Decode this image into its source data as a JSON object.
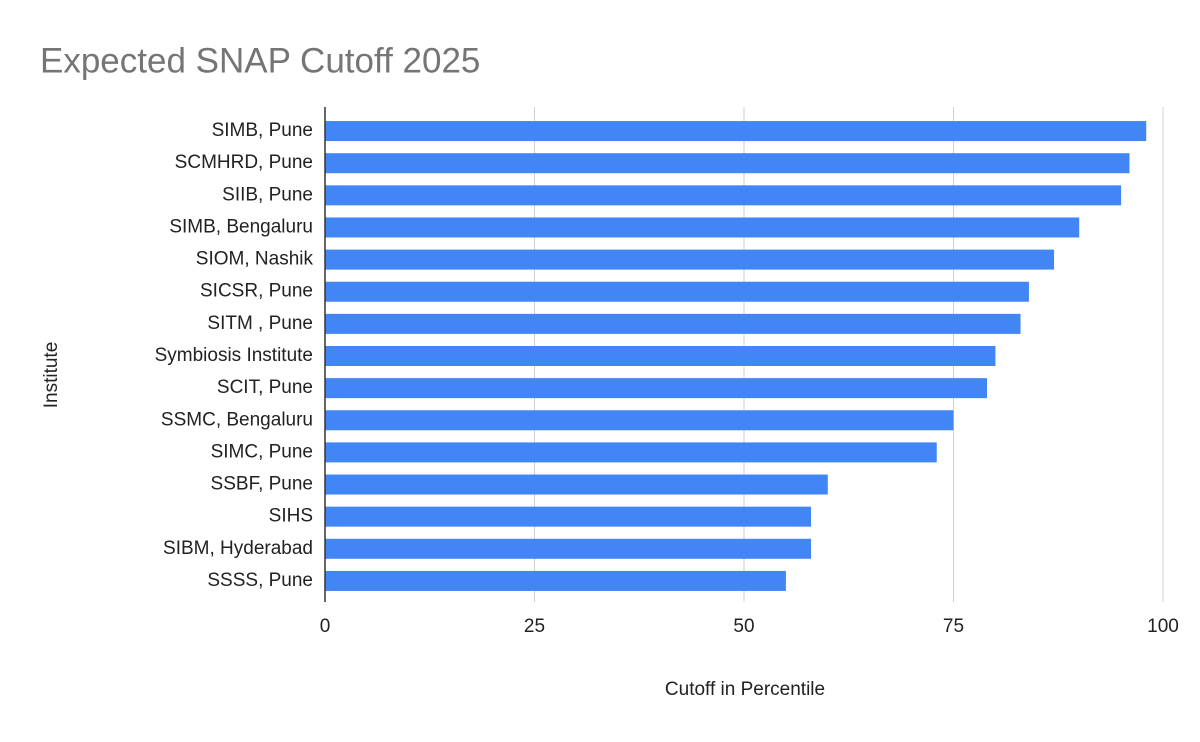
{
  "chart_data": {
    "type": "bar",
    "orientation": "horizontal",
    "title": "Expected SNAP Cutoff 2025",
    "x_label": "Cutoff in Percentile",
    "y_label": "Institute",
    "categories": [
      "SIMB, Pune",
      "SCMHRD, Pune",
      "SIIB, Pune",
      "SIMB, Bengaluru",
      "SIOM, Nashik",
      "SICSR, Pune",
      "SITM , Pune",
      "Symbiosis Institute",
      "SCIT, Pune",
      "SSMC, Bengaluru",
      "SIMC, Pune",
      "SSBF, Pune",
      "SIHS",
      "SIBM, Hyderabad",
      "SSSS, Pune"
    ],
    "values": [
      98,
      96,
      95,
      90,
      87,
      84,
      83,
      80,
      79,
      75,
      73,
      60,
      58,
      58,
      55
    ],
    "color": "#4285f4",
    "xlim": [
      0,
      100
    ],
    "xticks": [
      0,
      25,
      50,
      75,
      100
    ],
    "grid": true
  }
}
